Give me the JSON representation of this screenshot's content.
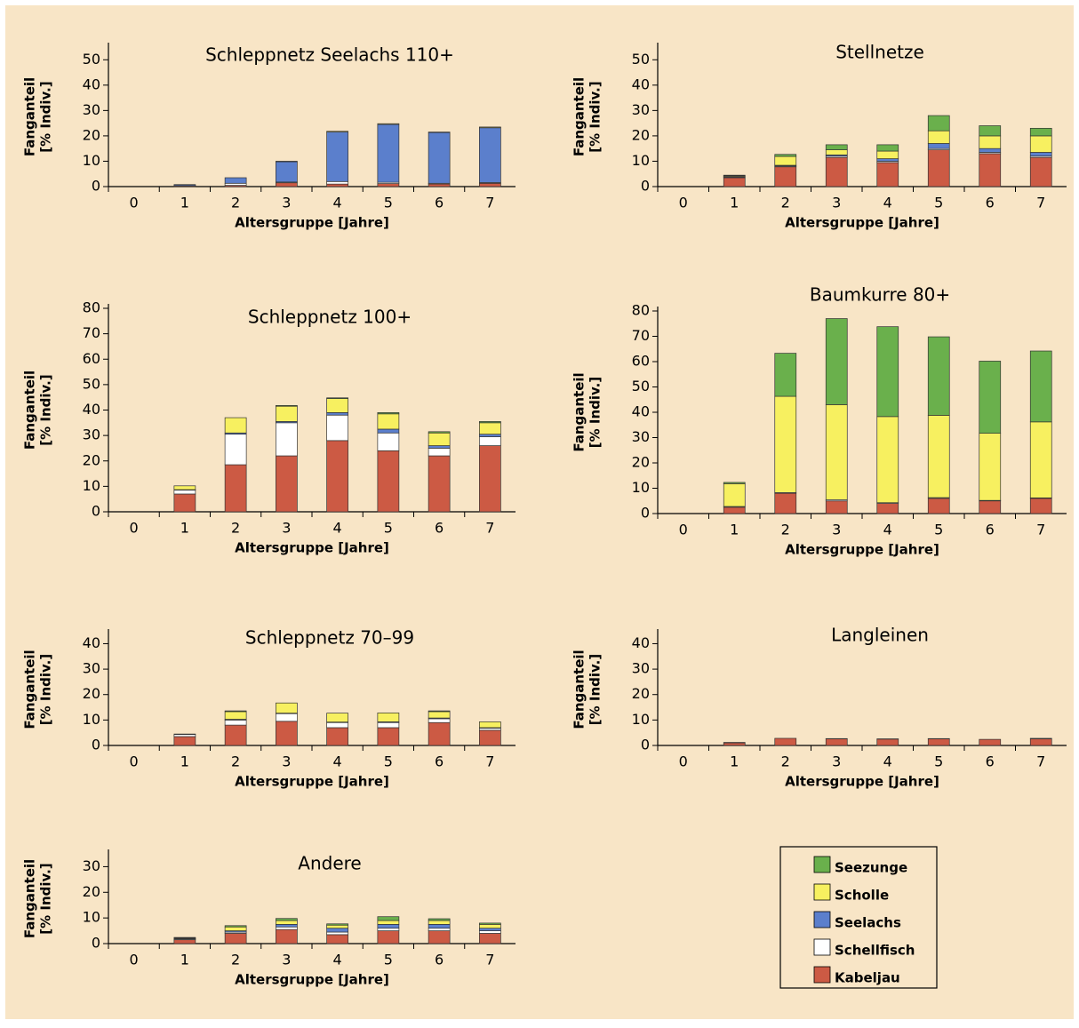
{
  "legend": [
    {
      "name": "Kabeljau",
      "color": "#cc5a44"
    },
    {
      "name": "Schellfisch",
      "color": "#ffffff"
    },
    {
      "name": "Seelachs",
      "color": "#5b7fcc"
    },
    {
      "name": "Scholle",
      "color": "#f7f060"
    },
    {
      "name": "Seezunge",
      "color": "#6ab04c"
    }
  ],
  "chart_data": [
    {
      "type": "bar",
      "title": "Schleppnetz Seelachs 110+",
      "ylabel": [
        "Fanganteil",
        "[% Indiv.]"
      ],
      "xlabel": "Altersgruppe [Jahre]",
      "categories": [
        "0",
        "1",
        "2",
        "3",
        "4",
        "5",
        "6",
        "7"
      ],
      "ylim": [
        0,
        55
      ],
      "yticks": [
        0,
        10,
        20,
        30,
        40,
        50
      ],
      "series": [
        {
          "values": [
            0,
            0.3,
            0.5,
            1.5,
            1,
            1.2,
            1,
            1.3
          ]
        },
        {
          "values": [
            0,
            0.1,
            0.8,
            0.3,
            1,
            0.5,
            0.3,
            0.3
          ]
        },
        {
          "values": [
            0,
            0.4,
            2.2,
            8,
            19.5,
            22.8,
            20,
            21.6
          ]
        },
        {
          "values": [
            0,
            0,
            0,
            0.2,
            0.3,
            0.3,
            0.2,
            0.3
          ]
        },
        {
          "values": [
            0,
            0,
            0,
            0,
            0,
            0,
            0,
            0
          ]
        }
      ]
    },
    {
      "type": "bar",
      "title": "Stellnetze",
      "ylabel": [
        "Fanganteil",
        "[% Indiv.]"
      ],
      "xlabel": "Altersgruppe [Jahre]",
      "categories": [
        "0",
        "1",
        "2",
        "3",
        "4",
        "5",
        "6",
        "7"
      ],
      "ylim": [
        0,
        55
      ],
      "yticks": [
        0,
        10,
        20,
        30,
        40,
        50
      ],
      "series": [
        {
          "values": [
            0,
            3.5,
            7.8,
            11.5,
            9.5,
            14.5,
            13,
            11.5
          ]
        },
        {
          "values": [
            0,
            0.2,
            0.3,
            0.5,
            0.5,
            0.5,
            0.5,
            0.5
          ]
        },
        {
          "values": [
            0,
            0.3,
            0.3,
            0.5,
            1,
            2,
            1.5,
            1.5
          ]
        },
        {
          "values": [
            0,
            0.3,
            3.5,
            2,
            3,
            5,
            5,
            6.5
          ]
        },
        {
          "values": [
            0,
            0.2,
            0.8,
            2,
            2.5,
            6,
            4,
            3
          ]
        }
      ]
    },
    {
      "type": "bar",
      "title": "Schleppnetz 100+",
      "ylabel": [
        "Fanganteil",
        "[% Indiv.]"
      ],
      "xlabel": "Altersgruppe [Jahre]",
      "categories": [
        "0",
        "1",
        "2",
        "3",
        "4",
        "5",
        "6",
        "7"
      ],
      "ylim": [
        0,
        80
      ],
      "yticks": [
        0,
        10,
        20,
        30,
        40,
        50,
        60,
        70,
        80
      ],
      "series": [
        {
          "values": [
            0,
            7,
            18.5,
            22,
            28,
            24,
            22,
            26
          ]
        },
        {
          "values": [
            0,
            1.5,
            12,
            13,
            10,
            7,
            3,
            3.5
          ]
        },
        {
          "values": [
            0,
            0.2,
            0.5,
            0.5,
            1,
            1.5,
            1,
            1
          ]
        },
        {
          "values": [
            0,
            1.5,
            6,
            6,
            5.5,
            6,
            5,
            4.5
          ]
        },
        {
          "values": [
            0,
            0,
            0,
            0.3,
            0.3,
            0.5,
            0.5,
            0.5
          ]
        }
      ]
    },
    {
      "type": "bar",
      "title": "Baumkurre 80+",
      "ylabel": [
        "Fanganteil",
        "[% Indiv.]"
      ],
      "xlabel": "Altersgruppe [Jahre]",
      "categories": [
        "0",
        "1",
        "2",
        "3",
        "4",
        "5",
        "6",
        "7"
      ],
      "ylim": [
        0,
        80
      ],
      "yticks": [
        0,
        10,
        20,
        30,
        40,
        50,
        60,
        70,
        80
      ],
      "series": [
        {
          "values": [
            0,
            2.5,
            8,
            5,
            4,
            6,
            5,
            6
          ]
        },
        {
          "values": [
            0,
            0.3,
            0.3,
            0.5,
            0.3,
            0.3,
            0.2,
            0.2
          ]
        },
        {
          "values": [
            0,
            0,
            0,
            0,
            0,
            0,
            0,
            0
          ]
        },
        {
          "values": [
            0,
            9,
            38,
            37.5,
            34,
            32.5,
            26.5,
            30
          ]
        },
        {
          "values": [
            0,
            0.5,
            17,
            34,
            35.5,
            31,
            28.5,
            28
          ]
        }
      ]
    },
    {
      "type": "bar",
      "title": "Schleppnetz 70–99",
      "ylabel": [
        "Fanganteil",
        "[% Indiv.]"
      ],
      "xlabel": "Altersgruppe [Jahre]",
      "categories": [
        "0",
        "1",
        "2",
        "3",
        "4",
        "5",
        "6",
        "7"
      ],
      "ylim": [
        0,
        44
      ],
      "yticks": [
        0,
        10,
        20,
        30,
        40
      ],
      "series": [
        {
          "values": [
            0,
            3.5,
            8,
            9.5,
            7,
            7,
            9,
            6
          ]
        },
        {
          "values": [
            0,
            0.8,
            2,
            3,
            2,
            2,
            1.5,
            0.8
          ]
        },
        {
          "values": [
            0,
            0,
            0.3,
            0.2,
            0.2,
            0.3,
            0.3,
            0.2
          ]
        },
        {
          "values": [
            0,
            0.2,
            3,
            4,
            3.5,
            3.5,
            2.5,
            2.3
          ]
        },
        {
          "values": [
            0,
            0,
            0.3,
            0,
            0,
            0,
            0.3,
            0
          ]
        }
      ]
    },
    {
      "type": "bar",
      "title": "Langleinen",
      "ylabel": [
        "Fanganteil",
        "[% Indiv.]"
      ],
      "xlabel": "Altersgruppe [Jahre]",
      "categories": [
        "0",
        "1",
        "2",
        "3",
        "4",
        "5",
        "6",
        "7"
      ],
      "ylim": [
        0,
        44
      ],
      "yticks": [
        0,
        10,
        20,
        30,
        40
      ],
      "series": [
        {
          "values": [
            0,
            1,
            2.8,
            2.6,
            2.5,
            2.6,
            2.4,
            2.6
          ]
        },
        {
          "values": [
            0,
            0.2,
            0,
            0.1,
            0.1,
            0.1,
            0,
            0.2
          ]
        },
        {
          "values": [
            0,
            0,
            0,
            0,
            0,
            0,
            0,
            0
          ]
        },
        {
          "values": [
            0,
            0,
            0,
            0,
            0,
            0,
            0,
            0
          ]
        },
        {
          "values": [
            0,
            0,
            0,
            0,
            0,
            0,
            0,
            0
          ]
        }
      ]
    },
    {
      "type": "bar",
      "title": "Andere",
      "ylabel": [
        "Fanganteil",
        "[% Indiv.]"
      ],
      "xlabel": "Altersgruppe [Jahre]",
      "categories": [
        "0",
        "1",
        "2",
        "3",
        "4",
        "5",
        "6",
        "7"
      ],
      "ylim": [
        0,
        35
      ],
      "yticks": [
        0,
        10,
        20,
        30
      ],
      "series": [
        {
          "values": [
            0,
            1.5,
            4,
            5.5,
            3.5,
            5,
            5,
            4
          ]
        },
        {
          "values": [
            0,
            0.3,
            0.5,
            1,
            1,
            1,
            1,
            1
          ]
        },
        {
          "values": [
            0,
            0.2,
            0.5,
            1,
            1.5,
            1.5,
            1.5,
            1
          ]
        },
        {
          "values": [
            0,
            0.2,
            1.5,
            1.5,
            1.2,
            1.5,
            1.5,
            1.5
          ]
        },
        {
          "values": [
            0,
            0.2,
            0.5,
            0.8,
            0.5,
            1.5,
            0.7,
            0.5
          ]
        }
      ]
    }
  ]
}
